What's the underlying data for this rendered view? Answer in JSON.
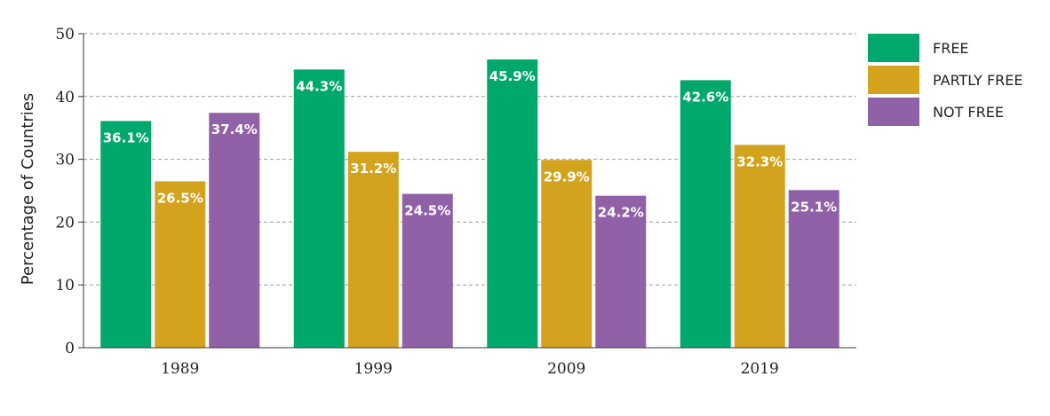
{
  "chart_data": {
    "type": "bar",
    "title": "",
    "xlabel": "",
    "ylabel": "Percentage of Countries",
    "ylim": [
      0,
      50
    ],
    "yticks": [
      "0",
      "10",
      "20",
      "30",
      "40",
      "50"
    ],
    "grid": "dashed horizontal",
    "legend_position": "right",
    "categories": [
      "1989",
      "1999",
      "2009",
      "2019"
    ],
    "series": [
      {
        "name": "FREE",
        "color": "#00a86b",
        "values": [
          36.1,
          44.3,
          45.9,
          42.6
        ],
        "labels": [
          "36.1%",
          "44.3%",
          "45.9%",
          "42.6%"
        ]
      },
      {
        "name": "PARTLY FREE",
        "color": "#d4a31e",
        "values": [
          26.5,
          31.2,
          29.9,
          32.3
        ],
        "labels": [
          "26.5%",
          "31.2%",
          "29.9%",
          "32.3%"
        ]
      },
      {
        "name": "NOT FREE",
        "color": "#9161a8",
        "values": [
          37.4,
          24.5,
          24.2,
          25.1
        ],
        "labels": [
          "37.4%",
          "24.5%",
          "24.2%",
          "25.1%"
        ]
      }
    ]
  }
}
